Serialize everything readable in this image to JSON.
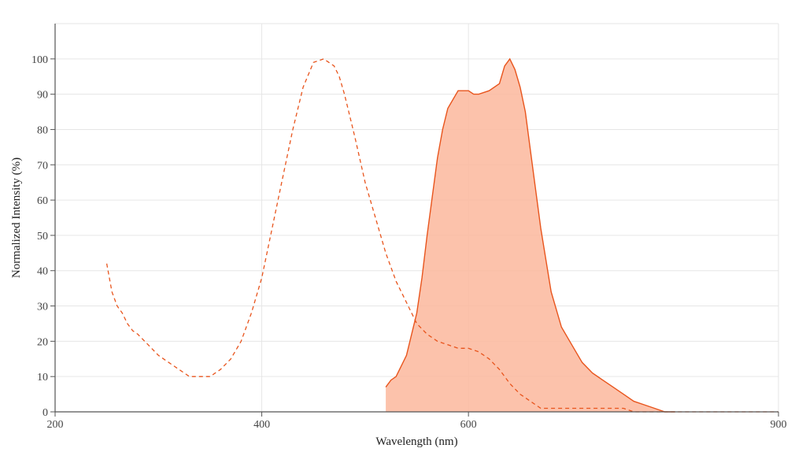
{
  "chart_data": {
    "type": "area",
    "title": "",
    "xlabel": "Wavelength (nm)",
    "ylabel": "Normalized Intensity (%)",
    "xlim": [
      200,
      900
    ],
    "ylim": [
      0,
      110
    ],
    "x_ticks": [
      200,
      400,
      600,
      900
    ],
    "y_ticks": [
      0,
      10,
      20,
      30,
      40,
      50,
      60,
      70,
      80,
      90,
      100
    ],
    "grid": true,
    "legend": "none",
    "colors": {
      "line": "#e8541c",
      "fill": "#fbb79c",
      "grid": "#e6e6e6",
      "axis": "#555555"
    },
    "series": [
      {
        "style": "dashed",
        "x": [
          250,
          255,
          260,
          265,
          270,
          275,
          280,
          290,
          300,
          310,
          320,
          330,
          340,
          350,
          360,
          370,
          380,
          390,
          400,
          410,
          420,
          430,
          440,
          450,
          460,
          465,
          470,
          475,
          480,
          490,
          500,
          510,
          520,
          530,
          540,
          550,
          560,
          570,
          580,
          590,
          600,
          610,
          620,
          630,
          640,
          650,
          660,
          670,
          680,
          700,
          720,
          740,
          750,
          760,
          780,
          800,
          820,
          850,
          880,
          900
        ],
        "y": [
          42,
          34,
          30,
          28,
          25,
          23,
          22,
          19,
          16,
          14,
          12,
          10,
          10,
          10,
          12,
          15,
          20,
          28,
          38,
          52,
          66,
          80,
          92,
          99,
          100,
          99,
          98,
          95,
          90,
          78,
          65,
          55,
          45,
          37,
          31,
          25,
          22,
          20,
          19,
          18,
          18,
          17,
          15,
          12,
          8,
          5,
          3,
          1,
          1,
          1,
          1,
          1,
          1,
          0,
          0,
          0,
          0,
          0,
          0,
          0
        ]
      },
      {
        "style": "solid-filled",
        "x": [
          520,
          525,
          530,
          540,
          550,
          555,
          560,
          570,
          575,
          580,
          590,
          600,
          605,
          610,
          620,
          630,
          635,
          640,
          645,
          650,
          655,
          660,
          670,
          680,
          690,
          700,
          710,
          720,
          730,
          740,
          750,
          760,
          770,
          780,
          790,
          800
        ],
        "y": [
          7,
          9,
          10,
          16,
          28,
          38,
          50,
          72,
          80,
          86,
          91,
          91,
          90,
          90,
          91,
          93,
          98,
          100,
          97,
          92,
          85,
          74,
          52,
          34,
          24,
          19,
          14,
          11,
          9,
          7,
          5,
          3,
          2,
          1,
          0,
          0
        ]
      }
    ]
  }
}
